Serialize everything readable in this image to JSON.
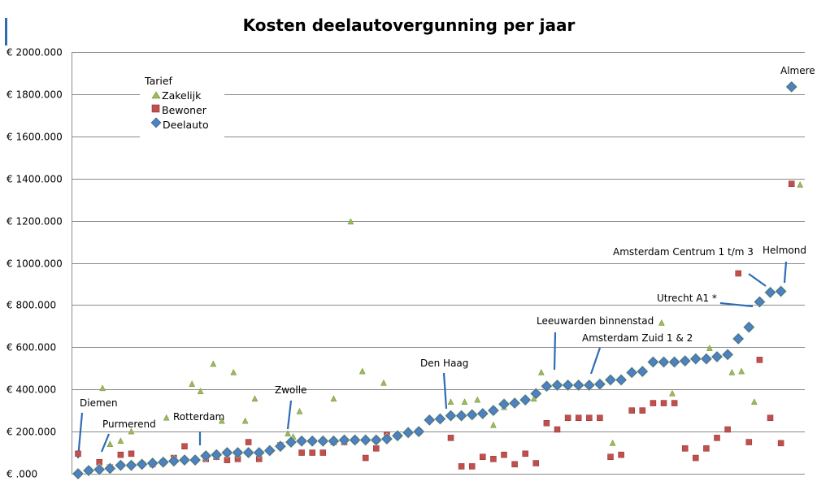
{
  "chart_data": {
    "type": "scatter",
    "title": "Kosten deelautovergunning per jaar",
    "xlabel": "",
    "ylabel": "",
    "ylim": [
      0,
      2000000
    ],
    "yticks": [
      {
        "value": 0,
        "label": "€ .000"
      },
      {
        "value": 200000,
        "label": "€ 200.000"
      },
      {
        "value": 400000,
        "label": "€ 400.000"
      },
      {
        "value": 600000,
        "label": "€ 600.000"
      },
      {
        "value": 800000,
        "label": "€ 800.000"
      },
      {
        "value": 1000000,
        "label": "€ 1000.000"
      },
      {
        "value": 1200000,
        "label": "€ 1200.000"
      },
      {
        "value": 1400000,
        "label": "€ 1400.000"
      },
      {
        "value": 1600000,
        "label": "€ 1600.000"
      },
      {
        "value": 1800000,
        "label": "€ 1800.000"
      },
      {
        "value": 2000000,
        "label": "€ 2000.000"
      }
    ],
    "grid": true,
    "legend": {
      "title": "Tarief",
      "placement": "top-left",
      "entries": [
        "Zakelijk",
        "Bewoner",
        "Deelauto"
      ]
    },
    "series": [
      {
        "name": "Deelauto",
        "marker": "diamond",
        "color": "#4f81bd",
        "values": [
          0,
          15000,
          20000,
          25000,
          40000,
          40000,
          45000,
          50000,
          55000,
          60000,
          65000,
          65000,
          85000,
          90000,
          100000,
          100000,
          100000,
          100000,
          110000,
          130000,
          150000,
          155000,
          155000,
          155000,
          155000,
          160000,
          160000,
          160000,
          160000,
          165000,
          180000,
          195000,
          200000,
          255000,
          260000,
          275000,
          275000,
          280000,
          285000,
          300000,
          330000,
          335000,
          350000,
          380000,
          415000,
          420000,
          420000,
          420000,
          420000,
          425000,
          445000,
          445000,
          480000,
          485000,
          530000,
          530000,
          530000,
          535000,
          545000,
          545000,
          555000,
          565000,
          640000,
          695000,
          815000,
          860000,
          865000,
          1835000
        ]
      },
      {
        "name": "Bewoner",
        "marker": "square",
        "color": "#c0504d",
        "values": [
          95000,
          15000,
          55000,
          30000,
          90000,
          95000,
          45000,
          45000,
          55000,
          75000,
          130000,
          65000,
          70000,
          80000,
          65000,
          70000,
          150000,
          70000,
          110000,
          135000,
          150000,
          100000,
          100000,
          100000,
          150000,
          150000,
          160000,
          75000,
          120000,
          185000,
          null,
          null,
          200000,
          null,
          null,
          170000,
          35000,
          35000,
          80000,
          70000,
          90000,
          45000,
          95000,
          50000,
          240000,
          210000,
          265000,
          265000,
          265000,
          265000,
          80000,
          90000,
          300000,
          300000,
          335000,
          335000,
          335000,
          120000,
          75000,
          120000,
          170000,
          210000,
          950000,
          150000,
          540000,
          265000,
          145000,
          1375000
        ]
      },
      {
        "name": "Zakelijk",
        "marker": "triangle",
        "color": "#9bbb59",
        "values": [
          95000,
          405000,
          140000,
          155000,
          200000,
          265000,
          425000,
          390000,
          520000,
          250000,
          480000,
          250000,
          355000,
          190000,
          175000,
          295000,
          355000,
          1195000,
          485000,
          430000,
          340000,
          340000,
          350000,
          230000,
          315000,
          355000,
          480000,
          145000,
          715000,
          380000,
          595000,
          480000,
          485000,
          340000,
          1370000
        ]
      }
    ],
    "annotations": [
      {
        "text": "Diemen"
      },
      {
        "text": "Purmerend"
      },
      {
        "text": "Rotterdam"
      },
      {
        "text": "Zwolle"
      },
      {
        "text": "Den Haag"
      },
      {
        "text": "Leeuwarden binnenstad"
      },
      {
        "text": "Amsterdam Zuid 1 & 2"
      },
      {
        "text": "Utrecht A1 *"
      },
      {
        "text": "Amsterdam Centrum 1 t/m 3"
      },
      {
        "text": "Helmond"
      },
      {
        "text": "Almere"
      }
    ]
  }
}
